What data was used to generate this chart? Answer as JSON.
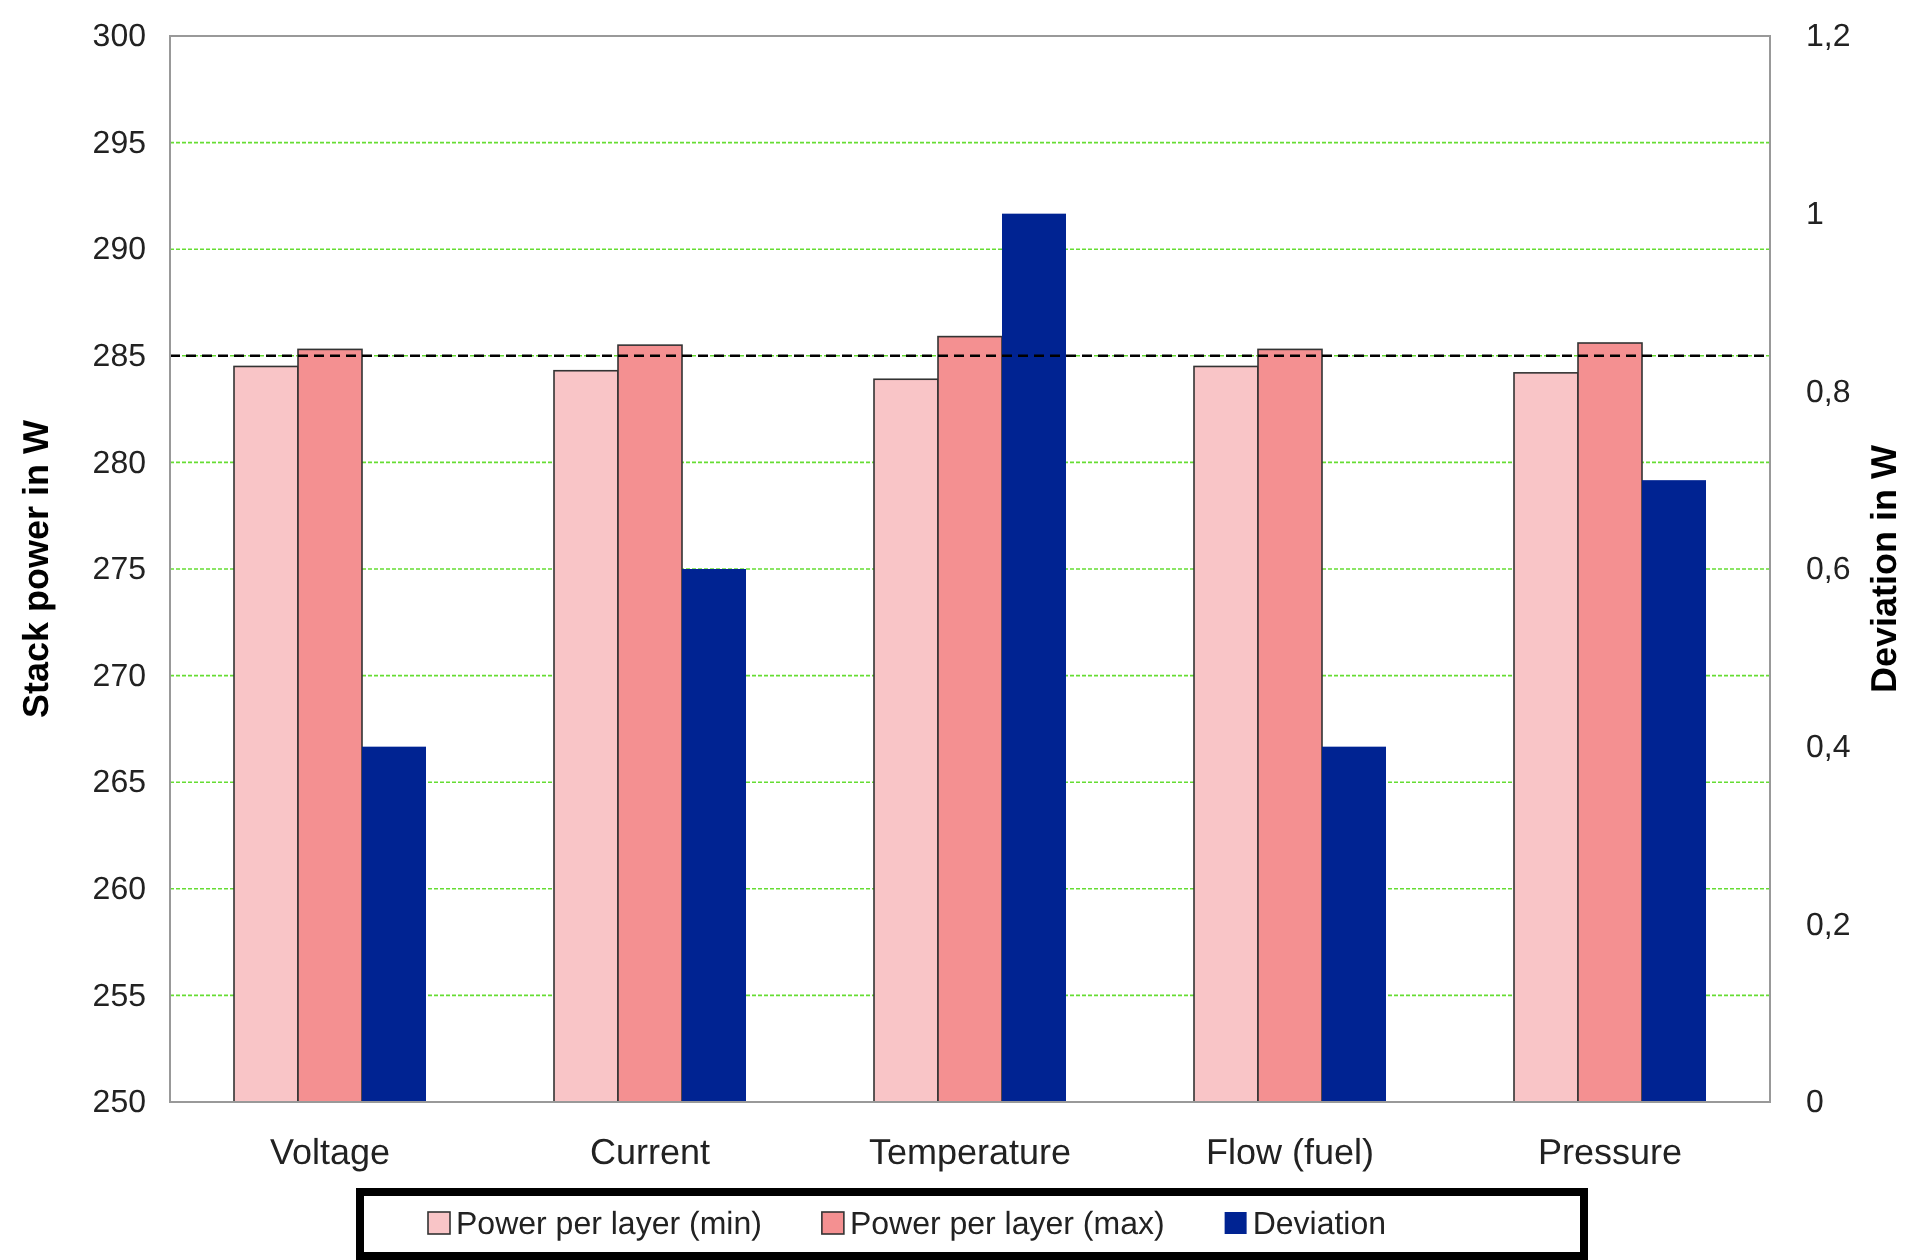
{
  "chart_data": {
    "type": "bar",
    "categories": [
      "Voltage",
      "Current",
      "Temperature",
      "Flow (fuel)",
      "Pressure"
    ],
    "ylabel": "Stack power in W",
    "y2label": "Deviation in W",
    "series": [
      {
        "name": "Power per layer (min)",
        "color": "#f9c5c7",
        "values": [
          284.5,
          284.3,
          283.9,
          284.5,
          284.2
        ]
      },
      {
        "name": "Power per layer (max)",
        "color": "#f49091",
        "values": [
          285.3,
          285.5,
          285.9,
          285.3,
          285.6
        ]
      },
      {
        "name": "Deviation",
        "color": "#002392",
        "axis": "y2",
        "values": [
          0.4,
          0.6,
          1.0,
          0.4,
          0.7
        ]
      }
    ],
    "ylim": [
      250,
      300
    ],
    "yticks": [
      250,
      255,
      260,
      265,
      270,
      275,
      280,
      285,
      290,
      295,
      300
    ],
    "y2lim": [
      0,
      1.2
    ],
    "y2ticks": [
      0,
      {
        "value": 0.2,
        "label": "0,2"
      },
      {
        "value": 0.4,
        "label": "0,4"
      },
      {
        "value": 0.6,
        "label": "0,6"
      },
      {
        "value": 0.8,
        "label": "0,8"
      },
      1,
      {
        "value": 1.2,
        "label": "1,2"
      }
    ],
    "ref_lines": [
      {
        "axis": "y",
        "value": 285,
        "color": "#000000",
        "line_style": "dashed"
      }
    ],
    "grid": "y",
    "legend": "bottom"
  }
}
